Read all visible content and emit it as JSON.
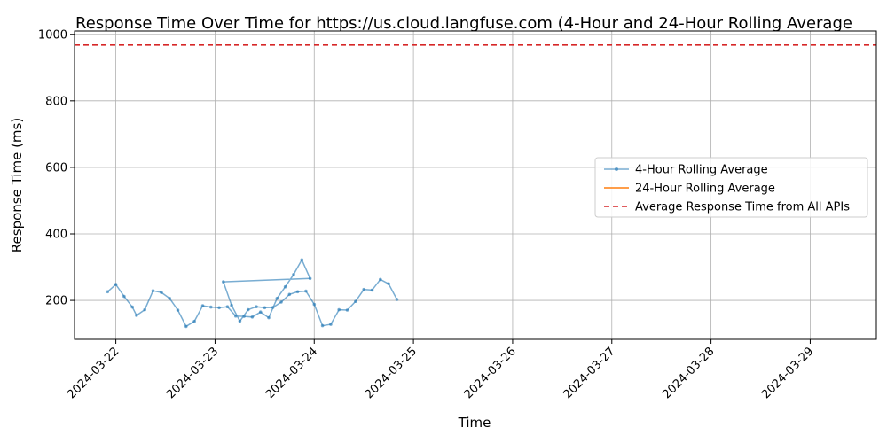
{
  "chart_data": {
    "type": "line",
    "title": "Response Time Over Time for https://us.cloud.langfuse.com (4-Hour and 24-Hour Rolling Average",
    "xlabel": "Time",
    "ylabel": "Response Time (ms)",
    "xlim": [
      "2024-03-21T14:00",
      "2024-03-29T16:00"
    ],
    "ylim": [
      83,
      1010
    ],
    "x_ticks": [
      "2024-03-22",
      "2024-03-23",
      "2024-03-24",
      "2024-03-25",
      "2024-03-26",
      "2024-03-27",
      "2024-03-28",
      "2024-03-29"
    ],
    "y_ticks": [
      200,
      400,
      600,
      800,
      1000
    ],
    "grid": true,
    "legend_position": "right",
    "hline": {
      "name": "Average Response Time from All APIs",
      "value": 968,
      "color": "#d62728",
      "style": "dashed"
    },
    "series": [
      {
        "name": "4-Hour Rolling Average",
        "color": "#1f77b4",
        "style": "line-markers",
        "points": [
          [
            "2024-03-21T22:00",
            226
          ],
          [
            "2024-03-22T00:00",
            248
          ],
          [
            "2024-03-22T02:00",
            212
          ],
          [
            "2024-03-22T04:00",
            180
          ],
          [
            "2024-03-22T05:00",
            155
          ],
          [
            "2024-03-22T07:00",
            172
          ],
          [
            "2024-03-22T09:00",
            229
          ],
          [
            "2024-03-22T11:00",
            224
          ],
          [
            "2024-03-22T13:00",
            206
          ],
          [
            "2024-03-22T15:00",
            171
          ],
          [
            "2024-03-22T17:00",
            122
          ],
          [
            "2024-03-22T19:00",
            137
          ],
          [
            "2024-03-22T21:00",
            184
          ],
          [
            "2024-03-22T23:00",
            180
          ],
          [
            "2024-03-23T01:00",
            178
          ],
          [
            "2024-03-23T03:00",
            181
          ],
          [
            "2024-03-23T05:00",
            153
          ],
          [
            "2024-03-23T07:00",
            152
          ],
          [
            "2024-03-23T09:00",
            150
          ],
          [
            "2024-03-23T11:00",
            165
          ],
          [
            "2024-03-23T13:00",
            148
          ],
          [
            "2024-03-23T15:00",
            206
          ],
          [
            "2024-03-23T17:00",
            241
          ],
          [
            "2024-03-23T19:00",
            278
          ],
          [
            "2024-03-23T21:00",
            322
          ],
          [
            "2024-03-23T23:00",
            266
          ],
          [
            "2024-03-23T02:00",
            256
          ],
          [
            "2024-03-23T04:00",
            185
          ],
          [
            "2024-03-23T06:00",
            138
          ],
          [
            "2024-03-23T08:00",
            172
          ],
          [
            "2024-03-23T10:00",
            181
          ],
          [
            "2024-03-23T12:00",
            178
          ],
          [
            "2024-03-23T14:00",
            179
          ],
          [
            "2024-03-23T16:00",
            195
          ],
          [
            "2024-03-23T18:00",
            218
          ],
          [
            "2024-03-23T20:00",
            226
          ],
          [
            "2024-03-23T22:00",
            228
          ],
          [
            "2024-03-24T00:00",
            188
          ],
          [
            "2024-03-24T02:00",
            124
          ],
          [
            "2024-03-24T04:00",
            128
          ],
          [
            "2024-03-24T06:00",
            172
          ],
          [
            "2024-03-24T08:00",
            171
          ],
          [
            "2024-03-24T10:00",
            197
          ],
          [
            "2024-03-24T12:00",
            233
          ],
          [
            "2024-03-24T14:00",
            231
          ],
          [
            "2024-03-24T16:00",
            263
          ],
          [
            "2024-03-24T18:00",
            250
          ],
          [
            "2024-03-24T20:00",
            203
          ]
        ]
      },
      {
        "name": "24-Hour Rolling Average",
        "color": "#ff7f0e",
        "style": "line",
        "points": []
      }
    ]
  }
}
